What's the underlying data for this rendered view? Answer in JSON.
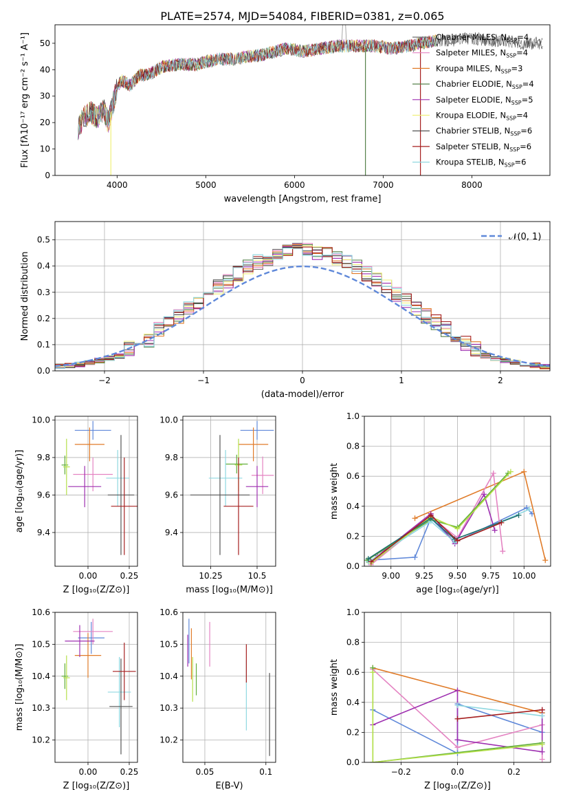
{
  "figure_title": "PLATE=2574, MJD=54084, FIBERID=0381, z=0.065",
  "colors": {
    "s0": "#6d6d6d",
    "s1": "#e483c2",
    "s2": "#e07b28",
    "s3": "#55804a",
    "s4": "#9e2fb0",
    "s5": "#f0f07a",
    "s6": "#3b3b3b",
    "s7": "#a51e1e",
    "s8": "#8fd8e0",
    "blue": "#5f88d9",
    "green": "#60ad3a",
    "pink": "#e483c2",
    "orange": "#e07b28",
    "purple": "#9e2fb0",
    "red": "#a51e1e",
    "teal": "#1f6f6f",
    "cyan": "#8fd8e0",
    "lime": "#b5e04a",
    "gray": "#555555",
    "grid": "#b0b0b0"
  },
  "legend_top": [
    {
      "name": "Chabrier MILES, N",
      "sub": "SSP",
      "eq": "=4"
    },
    {
      "name": "Salpeter MILES, N",
      "sub": "SSP",
      "eq": "=4"
    },
    {
      "name": "Kroupa MILES, N",
      "sub": "SSP",
      "eq": "=3"
    },
    {
      "name": "Chabrier ELODIE, N",
      "sub": "SSP",
      "eq": "=4"
    },
    {
      "name": "Salpeter ELODIE, N",
      "sub": "SSP",
      "eq": "=5"
    },
    {
      "name": "Kroupa ELODIE, N",
      "sub": "SSP",
      "eq": "=4"
    },
    {
      "name": "Chabrier STELIB, N",
      "sub": "SSP",
      "eq": "=6"
    },
    {
      "name": "Salpeter STELIB, N",
      "sub": "SSP",
      "eq": "=6"
    },
    {
      "name": "Kroupa STELIB, N",
      "sub": "SSP",
      "eq": "=6"
    }
  ],
  "legend_hist": {
    "label": "𝒩(0, 1)"
  },
  "chart_data": [
    {
      "id": "spectrum",
      "type": "line",
      "xlabel": "wavelength [Angstrom, rest frame]",
      "ylabel": "Flux [fλ10⁻¹⁷ erg cm⁻² s⁻¹ A⁻¹]",
      "xlim": [
        3300,
        8880
      ],
      "ylim": [
        0,
        57
      ],
      "xticks": [
        4000,
        5000,
        6000,
        7000,
        8000
      ],
      "yticks": [
        0,
        10,
        20,
        30,
        40,
        50
      ],
      "spectrum_anchors": [
        [
          3560,
          18
        ],
        [
          3620,
          22
        ],
        [
          3700,
          24
        ],
        [
          3780,
          22
        ],
        [
          3850,
          25
        ],
        [
          3900,
          20
        ],
        [
          3960,
          28
        ],
        [
          4000,
          33
        ],
        [
          4050,
          36
        ],
        [
          4150,
          34
        ],
        [
          4250,
          38
        ],
        [
          4350,
          38
        ],
        [
          4500,
          41
        ],
        [
          4700,
          42
        ],
        [
          4900,
          42
        ],
        [
          5000,
          43
        ],
        [
          5150,
          44
        ],
        [
          5300,
          44
        ],
        [
          5500,
          45
        ],
        [
          5700,
          46
        ],
        [
          5900,
          48
        ],
        [
          6100,
          47
        ],
        [
          6300,
          48
        ],
        [
          6500,
          49
        ],
        [
          6700,
          49
        ],
        [
          6900,
          49
        ],
        [
          7100,
          48
        ],
        [
          7300,
          49
        ],
        [
          7420,
          50
        ],
        [
          7600,
          51
        ],
        [
          7800,
          51
        ],
        [
          8000,
          52
        ],
        [
          8200,
          51
        ],
        [
          8400,
          51
        ],
        [
          8600,
          50
        ],
        [
          8800,
          50
        ]
      ],
      "bad_pixels": [
        3930,
        6800,
        7420
      ]
    },
    {
      "id": "residual_hist",
      "type": "step",
      "xlabel": "(data-model)/error",
      "ylabel": "Normed distribution",
      "xlim": [
        -2.5,
        2.5
      ],
      "ylim": [
        0,
        0.57
      ],
      "xticks": [
        -2,
        -1,
        0,
        1,
        2
      ],
      "yticks": [
        0,
        0.1,
        0.2,
        0.3,
        0.4,
        0.5
      ],
      "bin_width": 0.1
    },
    {
      "id": "age_vs_Z",
      "type": "errorbar",
      "xlabel": "Z [log₁₀(Z/Z⊙)]",
      "ylabel": "age  [log₁₀(age/yr)]",
      "xlim": [
        -0.2,
        0.3
      ],
      "ylim": [
        9.22,
        10.02
      ],
      "xticks": [
        0.0,
        0.25
      ],
      "yticks": [
        9.4,
        9.6,
        9.8,
        10.0
      ],
      "points": [
        {
          "c": "blue",
          "x": 0.03,
          "xe": 0.11,
          "y": 9.945,
          "ye": 0.05
        },
        {
          "c": "orange",
          "x": 0.01,
          "xe": 0.09,
          "y": 9.87,
          "ye": 0.09
        },
        {
          "c": "pink",
          "x": 0.03,
          "xe": 0.12,
          "y": 9.71,
          "ye": 0.09
        },
        {
          "c": "purple",
          "x": -0.02,
          "xe": 0.1,
          "y": 9.645,
          "ye": 0.11
        },
        {
          "c": "green",
          "x": -0.14,
          "xe": 0.02,
          "y": 9.76,
          "ye": 0.05
        },
        {
          "c": "lime",
          "x": -0.13,
          "xe": 0.02,
          "y": 9.75,
          "ye": 0.15
        },
        {
          "c": "cyan",
          "x": 0.18,
          "xe": 0.07,
          "y": 9.69,
          "ye": 0.15
        },
        {
          "c": "gray",
          "x": 0.2,
          "xe": 0.08,
          "y": 9.6,
          "ye": 0.32
        },
        {
          "c": "red",
          "x": 0.22,
          "xe": 0.08,
          "y": 9.54,
          "ye": 0.26
        }
      ]
    },
    {
      "id": "age_vs_mass",
      "type": "errorbar",
      "xlabel": "mass [log₁₀(M/M⊙)]",
      "ylabel": "",
      "xlim": [
        10.1,
        10.6
      ],
      "ylim": [
        9.22,
        10.02
      ],
      "xticks": [
        10.25,
        10.5
      ],
      "yticks": [
        9.4,
        9.6,
        9.8,
        10.0
      ],
      "points": [
        {
          "c": "blue",
          "x": 10.5,
          "xe": 0.09,
          "y": 9.945,
          "ye": 0.05
        },
        {
          "c": "orange",
          "x": 10.48,
          "xe": 0.08,
          "y": 9.87,
          "ye": 0.09
        },
        {
          "c": "pink",
          "x": 10.53,
          "xe": 0.06,
          "y": 9.705,
          "ye": 0.1
        },
        {
          "c": "purple",
          "x": 10.5,
          "xe": 0.06,
          "y": 9.645,
          "ye": 0.11
        },
        {
          "c": "green",
          "x": 10.39,
          "xe": 0.06,
          "y": 9.765,
          "ye": 0.05
        },
        {
          "c": "lime",
          "x": 10.4,
          "xe": 0.02,
          "y": 9.76,
          "ye": 0.14
        },
        {
          "c": "cyan",
          "x": 10.33,
          "xe": 0.09,
          "y": 9.69,
          "ye": 0.15
        },
        {
          "c": "gray",
          "x": 10.3,
          "xe": 0.16,
          "y": 9.6,
          "ye": 0.32
        },
        {
          "c": "red",
          "x": 10.4,
          "xe": 0.08,
          "y": 9.54,
          "ye": 0.26
        }
      ]
    },
    {
      "id": "weight_vs_age",
      "type": "line",
      "xlabel": "age  [log₁₀(age/yr)]",
      "ylabel": "mass weight",
      "xlim": [
        8.8,
        10.2
      ],
      "ylim": [
        0,
        1
      ],
      "xticks": [
        9.0,
        9.25,
        9.5,
        9.75,
        10.0
      ],
      "xticklabels": [
        "9.00",
        "9.25",
        "9.50",
        "9.75",
        "10.00"
      ],
      "yticks": [
        0,
        0.2,
        0.4,
        0.6,
        0.8,
        1.0
      ],
      "series": [
        {
          "c": "blue",
          "x": [
            8.83,
            9.18,
            9.3,
            9.48,
            10.02,
            10.06
          ],
          "y": [
            0.04,
            0.06,
            0.32,
            0.16,
            0.39,
            0.35
          ]
        },
        {
          "c": "orange",
          "x": [
            9.18,
            10.0,
            10.16
          ],
          "y": [
            0.32,
            0.63,
            0.04
          ]
        },
        {
          "c": "pink",
          "x": [
            8.85,
            9.3,
            9.5,
            9.77,
            9.84
          ],
          "y": [
            0.01,
            0.33,
            0.19,
            0.62,
            0.1
          ]
        },
        {
          "c": "purple",
          "x": [
            8.9,
            9.3,
            9.48,
            9.7,
            9.78
          ],
          "y": [
            0.07,
            0.35,
            0.15,
            0.48,
            0.24
          ]
        },
        {
          "c": "green",
          "x": [
            8.82,
            9.3,
            9.5,
            9.88
          ],
          "y": [
            0.04,
            0.31,
            0.26,
            0.62
          ]
        },
        {
          "c": "lime",
          "x": [
            8.85,
            9.3,
            9.5,
            9.9
          ],
          "y": [
            0.02,
            0.33,
            0.25,
            0.63
          ]
        },
        {
          "c": "cyan",
          "x": [
            8.83,
            9.3,
            9.48,
            10.04
          ],
          "y": [
            0.03,
            0.3,
            0.16,
            0.38
          ]
        },
        {
          "c": "teal",
          "x": [
            8.83,
            9.3,
            9.48,
            9.96
          ],
          "y": [
            0.05,
            0.32,
            0.18,
            0.34
          ]
        },
        {
          "c": "red",
          "x": [
            8.85,
            9.3,
            9.5,
            9.83
          ],
          "y": [
            0.03,
            0.34,
            0.17,
            0.29
          ]
        }
      ]
    },
    {
      "id": "mass_vs_Z",
      "type": "errorbar",
      "xlabel": "Z [log₁₀(Z/Z⊙)]",
      "ylabel": "mass [log₁₀(M/M⊙)]",
      "xlim": [
        -0.2,
        0.3
      ],
      "ylim": [
        10.13,
        10.6
      ],
      "xticks": [
        0.0,
        0.25
      ],
      "yticks": [
        10.2,
        10.3,
        10.4,
        10.5,
        10.6
      ],
      "points": [
        {
          "c": "blue",
          "x": 0.02,
          "xe": 0.08,
          "y": 10.52,
          "ye": 0.05
        },
        {
          "c": "orange",
          "x": 0.0,
          "xe": 0.08,
          "y": 10.465,
          "ye": 0.07
        },
        {
          "c": "pink",
          "x": 0.03,
          "xe": 0.12,
          "y": 10.54,
          "ye": 0.04
        },
        {
          "c": "purple",
          "x": -0.05,
          "xe": 0.09,
          "y": 10.51,
          "ye": 0.05
        },
        {
          "c": "green",
          "x": -0.14,
          "xe": 0.02,
          "y": 10.4,
          "ye": 0.04
        },
        {
          "c": "lime",
          "x": -0.13,
          "xe": 0.02,
          "y": 10.395,
          "ye": 0.07
        },
        {
          "c": "cyan",
          "x": 0.19,
          "xe": 0.07,
          "y": 10.35,
          "ye": 0.11
        },
        {
          "c": "gray",
          "x": 0.2,
          "xe": 0.07,
          "y": 10.305,
          "ye": 0.15
        },
        {
          "c": "red",
          "x": 0.22,
          "xe": 0.07,
          "y": 10.415,
          "ye": 0.09
        }
      ]
    },
    {
      "id": "mass_vs_ebv",
      "type": "errorbar",
      "xlabel": "E(B-V)",
      "ylabel": "",
      "xlim": [
        0.032,
        0.108
      ],
      "ylim": [
        10.13,
        10.6
      ],
      "xticks": [
        0.05,
        0.1
      ],
      "yticks": [
        10.2,
        10.3,
        10.4,
        10.5,
        10.6
      ],
      "points": [
        {
          "c": "blue",
          "x": 0.037,
          "xe": 0,
          "y": 10.51,
          "ye": 0.07
        },
        {
          "c": "purple",
          "x": 0.036,
          "xe": 0,
          "y": 10.48,
          "ye": 0.05
        },
        {
          "c": "orange",
          "x": 0.039,
          "xe": 0,
          "y": 10.47,
          "ye": 0.08
        },
        {
          "c": "lime",
          "x": 0.04,
          "xe": 0,
          "y": 10.39,
          "ye": 0.07
        },
        {
          "c": "green",
          "x": 0.043,
          "xe": 0,
          "y": 10.39,
          "ye": 0.05
        },
        {
          "c": "pink",
          "x": 0.054,
          "xe": 0,
          "y": 10.5,
          "ye": 0.07
        },
        {
          "c": "cyan",
          "x": 0.084,
          "xe": 0,
          "y": 10.34,
          "ye": 0.11
        },
        {
          "c": "red",
          "x": 0.084,
          "xe": 0,
          "y": 10.44,
          "ye": 0.06
        },
        {
          "c": "gray",
          "x": 0.103,
          "xe": 0,
          "y": 10.28,
          "ye": 0.13
        }
      ]
    },
    {
      "id": "weight_vs_Z",
      "type": "line",
      "xlabel": "Z [log₁₀(Z/Z⊙)]",
      "ylabel": "mass weight",
      "xlim": [
        -0.33,
        0.33
      ],
      "ylim": [
        0,
        1
      ],
      "xticks": [
        -0.2,
        0.0,
        0.2
      ],
      "xticklabels": [
        "−0.2",
        "0.0",
        "0.2"
      ],
      "yticks": [
        0,
        0.2,
        0.4,
        0.6,
        0.8,
        1.0
      ],
      "series": [
        {
          "c": "blue",
          "x": [
            -0.3,
            0.0,
            0.0,
            0.3,
            0.3
          ],
          "y": [
            0.35,
            0.06,
            0.39,
            0.2,
            0.33
          ]
        },
        {
          "c": "orange",
          "x": [
            -0.3,
            0.3
          ],
          "y": [
            0.63,
            0.33
          ]
        },
        {
          "c": "pink",
          "x": [
            -0.3,
            0.0,
            0.3,
            0.3
          ],
          "y": [
            0.62,
            0.1,
            0.25,
            0.02
          ]
        },
        {
          "c": "purple",
          "x": [
            -0.3,
            0.0,
            0.0,
            0.3,
            0.3
          ],
          "y": [
            0.25,
            0.48,
            0.15,
            0.07,
            0.35
          ]
        },
        {
          "c": "green",
          "x": [
            -0.3,
            -0.3,
            0.3
          ],
          "y": [
            0.63,
            0.0,
            0.13
          ]
        },
        {
          "c": "lime",
          "x": [
            -0.3,
            -0.3,
            0.3
          ],
          "y": [
            0.6,
            0.0,
            0.12
          ]
        },
        {
          "c": "cyan",
          "x": [
            0.0,
            0.3
          ],
          "y": [
            0.38,
            0.31
          ]
        },
        {
          "c": "red",
          "x": [
            0.0,
            0.3
          ],
          "y": [
            0.29,
            0.35
          ]
        }
      ]
    }
  ]
}
